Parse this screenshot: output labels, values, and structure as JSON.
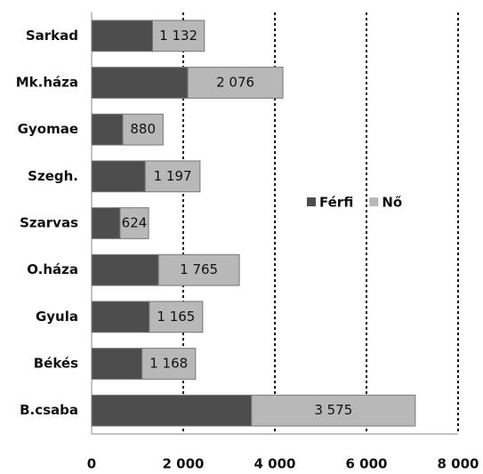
{
  "chart_data": {
    "type": "bar",
    "orientation": "horizontal",
    "stacked": true,
    "categories": [
      "Sarkad",
      "Mk.háza",
      "Gyomae",
      "Szegh.",
      "Szarvas",
      "O.háza",
      "Gyula",
      "Békés",
      "B.csaba"
    ],
    "series": [
      {
        "name": "Férfi",
        "color": "#4d4d4d",
        "values": [
          1330,
          2100,
          680,
          1170,
          620,
          1460,
          1260,
          1100,
          3490
        ]
      },
      {
        "name": "Nő",
        "color": "#b8b8b8",
        "values": [
          1132,
          2076,
          880,
          1197,
          624,
          1765,
          1165,
          1168,
          3575
        ],
        "value_labels": [
          "1 132",
          "2 076",
          "880",
          "1 197",
          "624",
          "1 765",
          "1 165",
          "1 168",
          "3 575"
        ]
      }
    ],
    "xlim": [
      0,
      8000
    ],
    "xticks": [
      0,
      {
        "value": 2000,
        "label": "2 000"
      },
      {
        "value": 4000,
        "label": "4 000"
      },
      {
        "value": 6000,
        "label": "6 000"
      },
      {
        "value": 8000,
        "label": "8 000"
      }
    ],
    "grid": true,
    "legend": "right"
  }
}
